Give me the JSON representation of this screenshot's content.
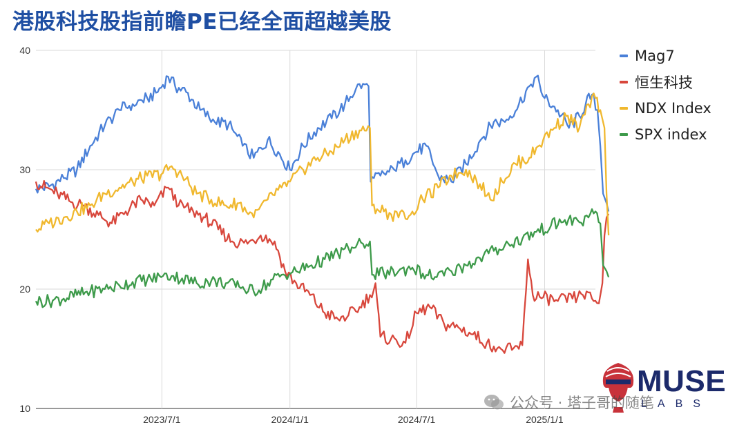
{
  "title": "港股科技股指前瞻PE已经全面超越美股",
  "chart_data": {
    "type": "line",
    "title": "港股科技股指前瞻PE已经全面超越美股",
    "xlabel": "",
    "ylabel": "",
    "x_range": [
      "2023-01-01",
      "2025-03-15"
    ],
    "ylim": [
      10,
      40
    ],
    "yticks": [
      10,
      20,
      30,
      40
    ],
    "xtick_labels": [
      "2023/7/1",
      "2024/1/1",
      "2024/7/1",
      "2025/1/1"
    ],
    "grid": true,
    "legend_position": "right",
    "series": [
      {
        "name": "Mag7",
        "color": "#4a80d8",
        "points": [
          [
            "2023-01-01",
            28.4
          ],
          [
            "2023-01-20",
            28.6
          ],
          [
            "2023-02-10",
            29.3
          ],
          [
            "2023-03-01",
            30.0
          ],
          [
            "2023-03-20",
            32.0
          ],
          [
            "2023-04-10",
            33.7
          ],
          [
            "2023-05-01",
            35.0
          ],
          [
            "2023-05-20",
            35.5
          ],
          [
            "2023-06-10",
            36.0
          ],
          [
            "2023-06-25",
            36.5
          ],
          [
            "2023-07-10",
            37.8
          ],
          [
            "2023-07-20",
            37.0
          ],
          [
            "2023-08-05",
            36.5
          ],
          [
            "2023-08-25",
            35.0
          ],
          [
            "2023-09-15",
            34.0
          ],
          [
            "2023-10-05",
            33.8
          ],
          [
            "2023-10-25",
            32.0
          ],
          [
            "2023-11-10",
            31.0
          ],
          [
            "2023-11-30",
            32.5
          ],
          [
            "2023-12-15",
            31.5
          ],
          [
            "2024-01-01",
            30.0
          ],
          [
            "2024-01-20",
            32.0
          ],
          [
            "2024-02-10",
            33.5
          ],
          [
            "2024-03-01",
            34.3
          ],
          [
            "2024-03-20",
            35.5
          ],
          [
            "2024-04-05",
            36.8
          ],
          [
            "2024-04-15",
            37.2
          ],
          [
            "2024-04-23",
            37.0
          ],
          [
            "2024-04-26",
            29.0
          ],
          [
            "2024-05-10",
            29.5
          ],
          [
            "2024-05-30",
            30.0
          ],
          [
            "2024-06-15",
            30.8
          ],
          [
            "2024-07-01",
            31.5
          ],
          [
            "2024-07-15",
            32.0
          ],
          [
            "2024-08-01",
            29.5
          ],
          [
            "2024-08-20",
            29.0
          ],
          [
            "2024-09-10",
            30.5
          ],
          [
            "2024-10-01",
            32.5
          ],
          [
            "2024-10-20",
            34.0
          ],
          [
            "2024-11-05",
            34.0
          ],
          [
            "2024-11-25",
            35.5
          ],
          [
            "2024-12-10",
            37.0
          ],
          [
            "2024-12-20",
            37.8
          ],
          [
            "2025-01-01",
            36.0
          ],
          [
            "2025-01-20",
            35.0
          ],
          [
            "2025-02-05",
            33.5
          ],
          [
            "2025-02-20",
            34.5
          ],
          [
            "2025-03-01",
            35.5
          ],
          [
            "2025-03-10",
            36.3
          ],
          [
            "2025-03-18",
            35.0
          ],
          [
            "2025-03-22",
            32.0
          ],
          [
            "2025-03-26",
            28.0
          ],
          [
            "2025-03-31",
            27.2
          ],
          [
            "2025-04-03",
            26.5
          ]
        ]
      },
      {
        "name": "恒生科技",
        "color": "#d8473c",
        "points": [
          [
            "2023-01-01",
            29.0
          ],
          [
            "2023-01-15",
            28.5
          ],
          [
            "2023-02-01",
            28.0
          ],
          [
            "2023-02-20",
            27.3
          ],
          [
            "2023-03-10",
            27.0
          ],
          [
            "2023-04-01",
            26.2
          ],
          [
            "2023-04-20",
            25.5
          ],
          [
            "2023-05-10",
            26.5
          ],
          [
            "2023-06-01",
            27.5
          ],
          [
            "2023-06-20",
            27.0
          ],
          [
            "2023-07-10",
            28.5
          ],
          [
            "2023-07-25",
            27.0
          ],
          [
            "2023-08-15",
            26.5
          ],
          [
            "2023-09-01",
            26.0
          ],
          [
            "2023-09-20",
            25.0
          ],
          [
            "2023-10-10",
            24.0
          ],
          [
            "2023-11-01",
            23.8
          ],
          [
            "2023-11-20",
            24.5
          ],
          [
            "2023-12-10",
            24.0
          ],
          [
            "2023-12-25",
            21.5
          ],
          [
            "2024-01-10",
            20.5
          ],
          [
            "2024-01-30",
            19.5
          ],
          [
            "2024-02-20",
            18.0
          ],
          [
            "2024-03-10",
            17.5
          ],
          [
            "2024-03-25",
            17.8
          ],
          [
            "2024-04-10",
            18.5
          ],
          [
            "2024-04-25",
            19.5
          ],
          [
            "2024-05-03",
            20.5
          ],
          [
            "2024-05-10",
            16.0
          ],
          [
            "2024-05-25",
            15.8
          ],
          [
            "2024-06-15",
            15.5
          ],
          [
            "2024-07-01",
            18.0
          ],
          [
            "2024-07-20",
            18.5
          ],
          [
            "2024-08-10",
            17.0
          ],
          [
            "2024-08-30",
            16.8
          ],
          [
            "2024-09-20",
            16.2
          ],
          [
            "2024-10-10",
            15.5
          ],
          [
            "2024-10-30",
            15.0
          ],
          [
            "2024-11-15",
            14.9
          ],
          [
            "2024-11-30",
            15.3
          ],
          [
            "2024-12-08",
            22.5
          ],
          [
            "2024-12-15",
            19.5
          ],
          [
            "2024-12-30",
            19.3
          ],
          [
            "2025-01-20",
            19.0
          ],
          [
            "2025-02-10",
            19.2
          ],
          [
            "2025-02-25",
            19.5
          ],
          [
            "2025-03-10",
            19.2
          ],
          [
            "2025-03-20",
            18.8
          ],
          [
            "2025-03-25",
            20.5
          ],
          [
            "2025-03-28",
            24.5
          ],
          [
            "2025-03-31",
            26.0
          ],
          [
            "2025-04-03",
            26.3
          ]
        ]
      },
      {
        "name": "NDX Index",
        "color": "#f0b82e",
        "points": [
          [
            "2023-01-01",
            25.0
          ],
          [
            "2023-01-20",
            25.5
          ],
          [
            "2023-02-10",
            26.0
          ],
          [
            "2023-03-01",
            26.5
          ],
          [
            "2023-03-20",
            27.0
          ],
          [
            "2023-04-10",
            28.0
          ],
          [
            "2023-05-01",
            28.5
          ],
          [
            "2023-05-20",
            29.0
          ],
          [
            "2023-06-10",
            29.5
          ],
          [
            "2023-06-30",
            29.6
          ],
          [
            "2023-07-15",
            30.3
          ],
          [
            "2023-07-30",
            29.5
          ],
          [
            "2023-08-20",
            28.0
          ],
          [
            "2023-09-10",
            27.5
          ],
          [
            "2023-10-01",
            27.0
          ],
          [
            "2023-10-20",
            27.2
          ],
          [
            "2023-11-10",
            26.0
          ],
          [
            "2023-11-30",
            27.5
          ],
          [
            "2023-12-20",
            28.5
          ],
          [
            "2024-01-01",
            29.0
          ],
          [
            "2024-01-20",
            30.0
          ],
          [
            "2024-02-10",
            31.0
          ],
          [
            "2024-03-01",
            31.5
          ],
          [
            "2024-03-20",
            32.5
          ],
          [
            "2024-04-10",
            33.3
          ],
          [
            "2024-04-25",
            33.5
          ],
          [
            "2024-04-28",
            27.0
          ],
          [
            "2024-05-15",
            26.5
          ],
          [
            "2024-06-05",
            26.0
          ],
          [
            "2024-06-25",
            26.5
          ],
          [
            "2024-07-10",
            27.5
          ],
          [
            "2024-08-01",
            28.5
          ],
          [
            "2024-08-20",
            29.5
          ],
          [
            "2024-09-10",
            30.0
          ],
          [
            "2024-09-30",
            28.8
          ],
          [
            "2024-10-15",
            27.5
          ],
          [
            "2024-11-01",
            29.0
          ],
          [
            "2024-11-20",
            30.5
          ],
          [
            "2024-12-10",
            31.0
          ],
          [
            "2024-12-30",
            32.5
          ],
          [
            "2025-01-15",
            33.5
          ],
          [
            "2025-02-01",
            34.5
          ],
          [
            "2025-02-20",
            33.5
          ],
          [
            "2025-03-05",
            35.5
          ],
          [
            "2025-03-15",
            36.0
          ],
          [
            "2025-03-22",
            35.0
          ],
          [
            "2025-03-28",
            33.5
          ],
          [
            "2025-03-31",
            28.0
          ],
          [
            "2025-04-03",
            24.5
          ]
        ]
      },
      {
        "name": "SPX index",
        "color": "#3d9a4a",
        "points": [
          [
            "2023-01-01",
            19.0
          ],
          [
            "2023-01-20",
            19.0
          ],
          [
            "2023-02-10",
            19.2
          ],
          [
            "2023-03-01",
            19.5
          ],
          [
            "2023-03-20",
            19.8
          ],
          [
            "2023-04-10",
            20.0
          ],
          [
            "2023-05-01",
            20.3
          ],
          [
            "2023-05-20",
            20.6
          ],
          [
            "2023-06-10",
            20.8
          ],
          [
            "2023-06-30",
            21.0
          ],
          [
            "2023-07-15",
            21.1
          ],
          [
            "2023-07-30",
            20.9
          ],
          [
            "2023-08-20",
            20.5
          ],
          [
            "2023-09-10",
            20.7
          ],
          [
            "2023-10-01",
            20.5
          ],
          [
            "2023-10-20",
            20.2
          ],
          [
            "2023-11-10",
            19.8
          ],
          [
            "2023-11-30",
            20.5
          ],
          [
            "2023-12-20",
            21.2
          ],
          [
            "2024-01-10",
            21.5
          ],
          [
            "2024-02-01",
            22.0
          ],
          [
            "2024-02-20",
            22.5
          ],
          [
            "2024-03-10",
            23.0
          ],
          [
            "2024-03-30",
            23.5
          ],
          [
            "2024-04-15",
            23.8
          ],
          [
            "2024-04-25",
            24.0
          ],
          [
            "2024-04-28",
            21.2
          ],
          [
            "2024-05-15",
            21.3
          ],
          [
            "2024-06-05",
            21.5
          ],
          [
            "2024-06-25",
            21.8
          ],
          [
            "2024-07-10",
            21.3
          ],
          [
            "2024-07-30",
            21.0
          ],
          [
            "2024-08-20",
            21.5
          ],
          [
            "2024-09-10",
            22.0
          ],
          [
            "2024-09-30",
            22.6
          ],
          [
            "2024-10-20",
            23.2
          ],
          [
            "2024-11-10",
            23.8
          ],
          [
            "2024-11-30",
            24.2
          ],
          [
            "2024-12-20",
            24.8
          ],
          [
            "2025-01-10",
            25.3
          ],
          [
            "2025-01-30",
            25.8
          ],
          [
            "2025-02-20",
            25.6
          ],
          [
            "2025-03-05",
            26.0
          ],
          [
            "2025-03-15",
            26.5
          ],
          [
            "2025-03-22",
            25.5
          ],
          [
            "2025-03-26",
            22.0
          ],
          [
            "2025-03-31",
            21.5
          ],
          [
            "2025-04-03",
            21.0
          ]
        ]
      }
    ]
  },
  "logo": {
    "word": "MUSE",
    "sub": "LABS"
  },
  "watermark": {
    "text": "公众号 · 塔子哥的随笔"
  },
  "icons": {
    "wechat": "wechat-icon",
    "logo_mark": "goddess-head-logo-icon"
  }
}
